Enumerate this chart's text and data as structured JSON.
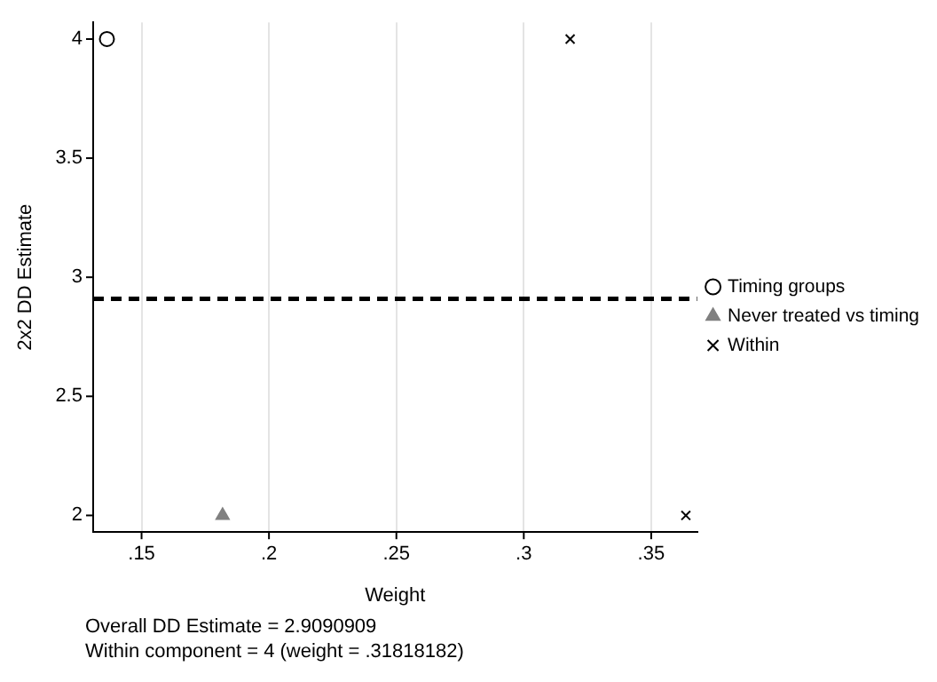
{
  "chart_data": {
    "type": "scatter",
    "xlabel": "Weight",
    "ylabel": "2x2 DD Estimate",
    "xlim": [
      0.131,
      0.368
    ],
    "ylim": [
      1.93,
      4.07
    ],
    "xticks": [
      {
        "value": 0.15,
        "label": ".15"
      },
      {
        "value": 0.2,
        "label": ".2"
      },
      {
        "value": 0.25,
        "label": ".25"
      },
      {
        "value": 0.3,
        "label": ".3"
      },
      {
        "value": 0.35,
        "label": ".35"
      }
    ],
    "yticks": [
      2,
      2.5,
      3,
      3.5,
      4
    ],
    "grid": "x",
    "legend": "right",
    "series": [
      {
        "name": "Timing groups",
        "color": "#000000",
        "marker": "circle",
        "x": [
          0.1364
        ],
        "values": [
          4
        ]
      },
      {
        "name": "Never treated vs timing",
        "color": "#808080",
        "marker": "triangle",
        "x": [
          0.1818
        ],
        "values": [
          2
        ]
      },
      {
        "name": "Within",
        "color": "#000000",
        "marker": "cross",
        "x": [
          0.3182,
          0.3636
        ],
        "values": [
          4,
          2
        ]
      }
    ],
    "ref_lines": [
      {
        "axis": "y",
        "value": 2.9090909,
        "color": "#000000",
        "line_style": "dashed"
      }
    ],
    "annotations": [
      "Overall DD Estimate = 2.9090909",
      "Within component = 4 (weight = .31818182)"
    ]
  }
}
